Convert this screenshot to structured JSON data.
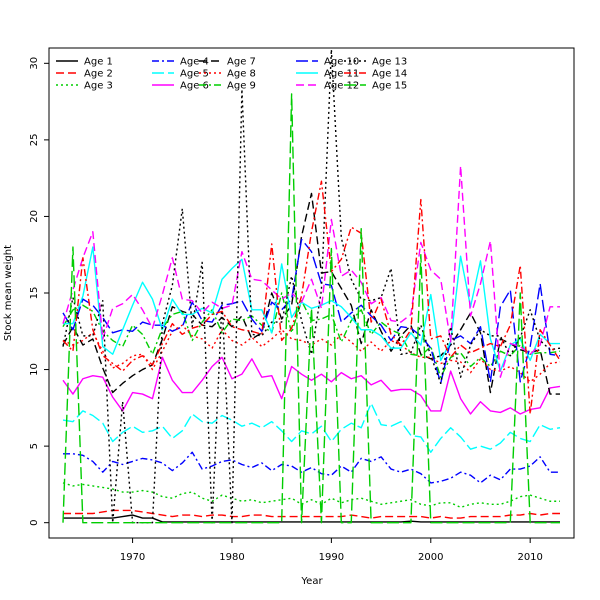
{
  "chart_data": {
    "type": "line",
    "title": "",
    "xlabel": "Year",
    "ylabel": "Stock mean weight",
    "xlim": [
      1963,
      2013
    ],
    "ylim": [
      -1,
      31
    ],
    "x_ticks": [
      1970,
      1980,
      1990,
      2000,
      2010
    ],
    "y_ticks": [
      0,
      5,
      10,
      15,
      20,
      25,
      30
    ],
    "grid": false,
    "legend_position": "top-left",
    "x": [
      1963,
      1964,
      1965,
      1966,
      1967,
      1968,
      1969,
      1970,
      1971,
      1972,
      1973,
      1974,
      1975,
      1976,
      1977,
      1978,
      1979,
      1980,
      1981,
      1982,
      1983,
      1984,
      1985,
      1986,
      1987,
      1988,
      1989,
      1990,
      1991,
      1992,
      1993,
      1994,
      1995,
      1996,
      1997,
      1998,
      1999,
      2000,
      2001,
      2002,
      2003,
      2004,
      2005,
      2006,
      2007,
      2008,
      2009,
      2010,
      2011,
      2012,
      2013
    ],
    "series": [
      {
        "name": "Age 1",
        "color": "#000000",
        "dash": "solid",
        "values": [
          0.3,
          0.3,
          0.3,
          0.3,
          0.3,
          0.3,
          0.4,
          0.5,
          0.3,
          0.3,
          0.05,
          0.05,
          0.05,
          0.05,
          0.05,
          0.05,
          0.05,
          0.05,
          0.05,
          0.05,
          0.05,
          0.05,
          0.05,
          0.05,
          0.05,
          0.05,
          0.05,
          0.05,
          0.05,
          0.05,
          0.05,
          0.05,
          0.05,
          0.05,
          0.05,
          0.1,
          0.05,
          0.05,
          0.05,
          0.05,
          0.05,
          0.05,
          0.05,
          0.05,
          0.05,
          0.05,
          0.05,
          0.05,
          0.05,
          0.05,
          0.05
        ]
      },
      {
        "name": "Age 2",
        "color": "#ff0000",
        "dash": "dashed",
        "values": [
          0.6,
          0.6,
          0.6,
          0.6,
          0.7,
          0.8,
          0.8,
          0.8,
          0.7,
          0.6,
          0.5,
          0.4,
          0.5,
          0.5,
          0.4,
          0.5,
          0.5,
          0.4,
          0.4,
          0.5,
          0.5,
          0.4,
          0.4,
          0.4,
          0.4,
          0.4,
          0.4,
          0.4,
          0.4,
          0.5,
          0.4,
          0.3,
          0.4,
          0.4,
          0.4,
          0.4,
          0.4,
          0.3,
          0.4,
          0.3,
          0.3,
          0.4,
          0.4,
          0.4,
          0.4,
          0.5,
          0.5,
          0.6,
          0.5,
          0.6,
          0.6
        ]
      },
      {
        "name": "Age 3",
        "color": "#00cd00",
        "dash": "dotted",
        "values": [
          2.6,
          2.4,
          2.5,
          2.4,
          2.3,
          2.2,
          2.0,
          2.0,
          2.1,
          2.0,
          1.7,
          1.6,
          1.9,
          2.0,
          1.6,
          1.4,
          1.8,
          1.6,
          1.4,
          1.5,
          1.3,
          1.4,
          1.5,
          1.6,
          1.2,
          1.5,
          1.2,
          1.6,
          1.3,
          1.5,
          1.6,
          1.4,
          1.2,
          1.3,
          1.4,
          1.5,
          1.2,
          1.1,
          1.3,
          1.3,
          1.0,
          1.2,
          1.3,
          1.2,
          1.2,
          1.4,
          1.7,
          1.8,
          1.6,
          1.4,
          1.4
        ]
      },
      {
        "name": "Age 4",
        "color": "#0000ff",
        "dash": "dashdot",
        "values": [
          4.5,
          4.5,
          4.4,
          4.0,
          3.3,
          4.0,
          3.8,
          4.0,
          4.2,
          4.1,
          3.9,
          3.4,
          3.9,
          4.6,
          3.5,
          3.7,
          4.0,
          4.1,
          3.8,
          3.6,
          3.9,
          3.4,
          3.8,
          3.7,
          3.3,
          3.6,
          3.2,
          3.1,
          3.7,
          3.3,
          4.2,
          4.0,
          4.3,
          3.5,
          3.3,
          3.5,
          3.2,
          2.6,
          2.7,
          2.9,
          3.3,
          3.1,
          2.6,
          3.1,
          2.8,
          3.5,
          3.5,
          3.7,
          4.3,
          3.3,
          3.3
        ]
      },
      {
        "name": "Age 5",
        "color": "#00ffff",
        "dash": "longdash",
        "values": [
          6.7,
          6.6,
          7.3,
          7.0,
          6.5,
          5.3,
          5.9,
          6.3,
          5.9,
          6.0,
          6.3,
          5.5,
          6.0,
          7.1,
          6.6,
          6.5,
          7.0,
          6.7,
          6.3,
          6.5,
          6.2,
          6.6,
          6.0,
          5.3,
          6.0,
          5.8,
          6.3,
          5.3,
          6.1,
          6.5,
          6.2,
          7.8,
          6.4,
          6.3,
          6.6,
          5.7,
          5.6,
          4.6,
          5.5,
          6.2,
          5.6,
          4.8,
          5.0,
          4.8,
          5.2,
          5.9,
          5.5,
          5.3,
          6.4,
          6.1,
          6.2
        ]
      },
      {
        "name": "Age 6",
        "color": "#ff00ff",
        "dash": "solid",
        "values": [
          9.3,
          8.4,
          9.4,
          9.6,
          9.5,
          8.2,
          7.3,
          8.5,
          8.4,
          8.1,
          10.8,
          9.3,
          8.5,
          8.5,
          9.3,
          10.2,
          10.8,
          9.4,
          9.7,
          10.7,
          9.5,
          9.6,
          8.1,
          10.2,
          9.7,
          9.3,
          9.7,
          9.2,
          9.8,
          9.4,
          9.6,
          9.0,
          9.3,
          8.6,
          8.7,
          8.7,
          8.3,
          7.3,
          7.3,
          9.9,
          8.1,
          7.1,
          7.9,
          7.3,
          7.2,
          7.5,
          7.1,
          7.4,
          7.5,
          8.8,
          8.9
        ]
      },
      {
        "name": "Age 7",
        "color": "#000000",
        "dash": "dashed",
        "values": [
          11.6,
          12.8,
          11.6,
          12.0,
          10.1,
          8.5,
          9.1,
          9.6,
          10.0,
          10.3,
          12.0,
          14.1,
          13.8,
          13.6,
          12.9,
          12.8,
          13.4,
          12.8,
          13.5,
          12.0,
          12.4,
          15.0,
          13.3,
          14.2,
          18.7,
          21.5,
          16.3,
          16.4,
          15.3,
          14.2,
          11.7,
          13.9,
          12.5,
          11.2,
          12.2,
          12.9,
          11.0,
          10.7,
          10.9,
          11.6,
          12.6,
          13.7,
          12.4,
          8.5,
          12.0,
          11.7,
          11.3,
          11.1,
          11.3,
          8.4,
          8.4
        ]
      },
      {
        "name": "Age 8",
        "color": "#ff0000",
        "dash": "dotted",
        "values": [
          11.9,
          11.6,
          11.9,
          12.4,
          11.2,
          10.1,
          10.4,
          10.9,
          11.0,
          10.0,
          11.2,
          12.5,
          12.9,
          12.2,
          12.0,
          11.4,
          12.6,
          11.9,
          11.6,
          12.1,
          11.5,
          12.0,
          12.6,
          12.0,
          11.9,
          11.6,
          12.0,
          11.6,
          12.3,
          11.8,
          11.2,
          11.8,
          11.2,
          11.9,
          11.6,
          11.1,
          10.8,
          10.8,
          10.4,
          10.6,
          10.5,
          9.8,
          10.7,
          10.0,
          9.9,
          10.2,
          9.8,
          9.2,
          9.7,
          10.4,
          10.5
        ]
      },
      {
        "name": "Age 9",
        "color": "#00cd00",
        "dash": "dashdot",
        "values": [
          12.8,
          13.9,
          14.2,
          13.8,
          12.5,
          11.9,
          11.5,
          12.9,
          12.3,
          11.0,
          12.7,
          13.6,
          13.8,
          11.9,
          13.1,
          13.9,
          12.4,
          13.3,
          13.2,
          13.5,
          12.9,
          12.4,
          15.0,
          12.4,
          14.5,
          13.2,
          13.3,
          13.6,
          11.8,
          13.2,
          13.9,
          12.3,
          13.1,
          12.6,
          12.3,
          11.0,
          10.9,
          11.5,
          9.5,
          10.8,
          11.1,
          10.2,
          10.8,
          10.2,
          11.2,
          10.9,
          11.6,
          11.0,
          11.1,
          11.1,
          11.2
        ]
      },
      {
        "name": "Age 10",
        "color": "#0000ff",
        "dash": "longdash",
        "values": [
          13.7,
          12.6,
          14.6,
          14.2,
          13.4,
          12.4,
          12.6,
          12.5,
          13.1,
          12.9,
          12.9,
          12.5,
          12.8,
          14.4,
          13.2,
          13.1,
          14.2,
          14.3,
          14.5,
          13.3,
          12.5,
          14.4,
          13.9,
          14.6,
          18.5,
          17.7,
          15.6,
          15.5,
          13.1,
          13.7,
          14.2,
          13.5,
          12.9,
          11.9,
          12.8,
          12.7,
          12.2,
          11.4,
          9.1,
          11.9,
          12.2,
          11.7,
          12.8,
          9.2,
          14.1,
          15.2,
          9.2,
          11.5,
          15.6,
          11.0,
          10.9
        ]
      },
      {
        "name": "Age 11",
        "color": "#00ffff",
        "dash": "solid",
        "values": [
          13.0,
          13.0,
          14.8,
          18.0,
          11.5,
          11.0,
          12.6,
          14.2,
          15.7,
          14.6,
          12.6,
          14.6,
          13.6,
          13.6,
          14.0,
          13.7,
          15.9,
          16.6,
          17.2,
          13.9,
          13.9,
          12.4,
          16.9,
          13.4,
          14.4,
          14.0,
          14.2,
          14.5,
          14.1,
          13.4,
          12.6,
          12.6,
          12.2,
          11.4,
          11.4,
          12.4,
          11.6,
          14.9,
          10.6,
          11.8,
          17.4,
          14.1,
          17.1,
          12.0,
          9.9,
          11.6,
          12.0,
          10.6,
          12.3,
          11.7,
          11.7
        ]
      },
      {
        "name": "Age 12",
        "color": "#ff00ff",
        "dash": "dashed",
        "values": [
          13.0,
          15.2,
          17.3,
          19.0,
          12.0,
          14.0,
          14.3,
          14.9,
          13.9,
          12.7,
          14.9,
          17.3,
          14.6,
          14.5,
          13.7,
          14.4,
          14.0,
          14.2,
          17.7,
          15.9,
          15.8,
          15.2,
          14.6,
          15.0,
          14.4,
          15.9,
          14.0,
          19.8,
          16.1,
          16.5,
          15.7,
          14.3,
          14.7,
          13.2,
          13.1,
          13.6,
          18.3,
          16.5,
          15.9,
          11.8,
          23.3,
          13.5,
          15.6,
          18.4,
          9.5,
          11.7,
          11.5,
          11.0,
          11.6,
          14.1,
          14.1
        ]
      },
      {
        "name": "Age 13",
        "color": "#000000",
        "dash": "dotted",
        "values": [
          11.5,
          14.7,
          12.2,
          12.2,
          14.5,
          0.0,
          7.9,
          0.0,
          0.0,
          0.0,
          13.0,
          15.5,
          20.5,
          12.8,
          17.0,
          0.0,
          14.5,
          0.0,
          28.3,
          12.3,
          12.2,
          13.1,
          13.1,
          16.1,
          13.2,
          11.0,
          15.2,
          30.9,
          18.6,
          15.9,
          14.6,
          14.5,
          14.7,
          16.6,
          11.0,
          11.1,
          12.9,
          10.9,
          9.1,
          12.8,
          9.5,
          11.6,
          12.6,
          12.2,
          12.2,
          10.9,
          12.1,
          13.9,
          11.9,
          11.3,
          11.4
        ]
      },
      {
        "name": "Age 14",
        "color": "#ff0000",
        "dash": "dashdot",
        "values": [
          11.9,
          11.2,
          17.3,
          12.6,
          10.9,
          10.4,
          9.9,
          10.6,
          10.9,
          10.3,
          11.7,
          13.0,
          12.3,
          12.7,
          12.9,
          13.6,
          13.8,
          12.8,
          12.6,
          12.5,
          12.3,
          18.2,
          11.9,
          12.7,
          14.8,
          19.0,
          22.3,
          16.4,
          17.2,
          19.3,
          18.9,
          13.1,
          14.6,
          12.3,
          11.6,
          12.6,
          21.1,
          12.0,
          12.2,
          10.8,
          11.6,
          11.1,
          11.4,
          11.7,
          11.5,
          12.9,
          16.8,
          7.1,
          12.6,
          11.6,
          10.6
        ]
      },
      {
        "name": "Age 15",
        "color": "#00cd00",
        "dash": "longdash",
        "values": [
          0.0,
          18.0,
          0.0,
          0.0,
          0.0,
          0.0,
          0.0,
          0.0,
          0.0,
          0.0,
          0.0,
          0.0,
          0.0,
          0.0,
          0.0,
          0.0,
          0.0,
          0.0,
          0.0,
          0.0,
          0.0,
          0.0,
          0.0,
          28.0,
          0.0,
          14.0,
          0.0,
          17.9,
          0.0,
          0.0,
          19.2,
          0.0,
          0.0,
          0.0,
          0.0,
          0.0,
          17.5,
          0.0,
          0.0,
          0.0,
          0.0,
          0.0,
          0.0,
          0.0,
          0.0,
          0.0,
          15.0,
          0.0,
          0.0,
          0.0,
          0.0
        ]
      }
    ]
  }
}
